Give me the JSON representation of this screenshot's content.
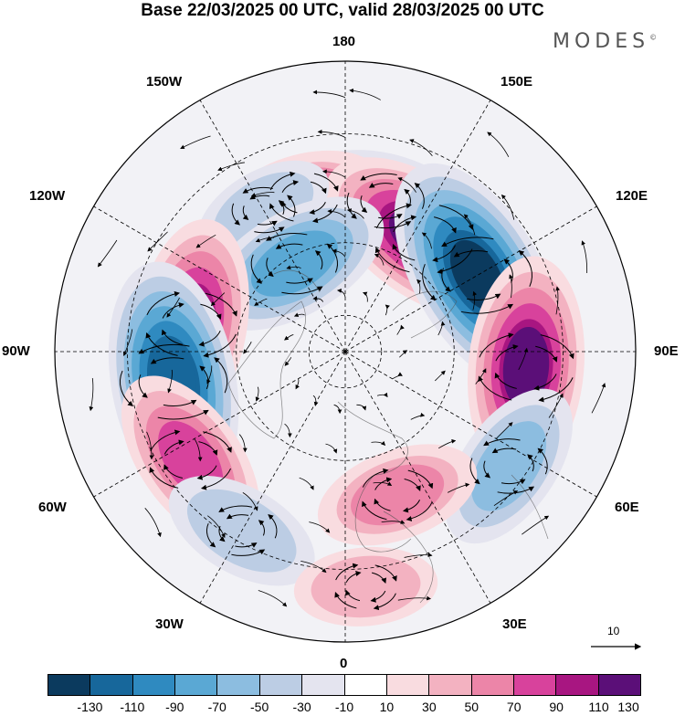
{
  "title": "Base 22/03/2025 00 UTC, valid 28/03/2025 00 UTC",
  "brand": "MODES",
  "brand_mark": "©",
  "labels": {
    "lon_180": "180",
    "lon_150w": "150W",
    "lon_150e": "150E",
    "lon_120w": "120W",
    "lon_120e": "120E",
    "lon_90w": "90W",
    "lon_90e": "90E",
    "lon_60w": "60W",
    "lon_60e": "60E",
    "lon_30w": "30W",
    "lon_30e": "30E",
    "lon_0": "0"
  },
  "reference_vector": "10",
  "colorbar": {
    "colors": [
      "#0b3a5e",
      "#17679b",
      "#2f8ac0",
      "#5aa8d4",
      "#8cbde0",
      "#bccde4",
      "#e4e4ef",
      "#ffffff",
      "#f9dce0",
      "#f3b2c1",
      "#ec85a8",
      "#d8429c",
      "#a81681",
      "#5b0f78"
    ],
    "ticks": [
      "-130",
      "-110",
      "-90",
      "-70",
      "-50",
      "-30",
      "-10",
      "10",
      "30",
      "50",
      "70",
      "90",
      "110",
      "130"
    ]
  },
  "anomalies": [
    {
      "lon": 165,
      "lat": 47,
      "value": -65
    },
    {
      "lon": -165,
      "lat": 46,
      "value": 50
    },
    {
      "lon": 145,
      "lat": 52,
      "value": 115
    },
    {
      "lon": -150,
      "lat": 45,
      "value": -35
    },
    {
      "lon": -150,
      "lat": 62,
      "value": -85
    },
    {
      "lon": 120,
      "lat": 48,
      "value": -135
    },
    {
      "lon": -100,
      "lat": 47,
      "value": 100
    },
    {
      "lon": 85,
      "lat": 40,
      "value": 110
    },
    {
      "lon": -80,
      "lat": 42,
      "value": -130
    },
    {
      "lon": 55,
      "lat": 35,
      "value": -65
    },
    {
      "lon": -55,
      "lat": 38,
      "value": 80
    },
    {
      "lon": 20,
      "lat": 48,
      "value": 55
    },
    {
      "lon": -30,
      "lat": 33,
      "value": -50
    },
    {
      "lon": 5,
      "lat": 25,
      "value": 35
    }
  ]
}
